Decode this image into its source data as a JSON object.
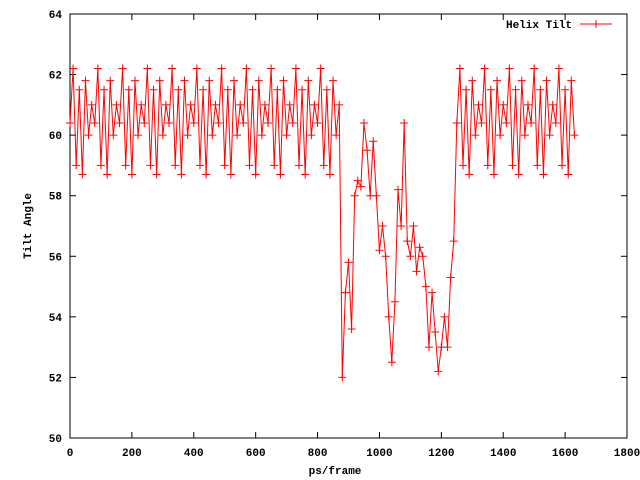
{
  "chart_data": {
    "type": "line",
    "xlabel": "ps/frame",
    "ylabel": "Tilt Angle",
    "xlim": [
      0,
      1800
    ],
    "xticks": [
      0,
      200,
      400,
      600,
      800,
      1000,
      1200,
      1400,
      1600,
      1800
    ],
    "ylim": [
      50,
      64
    ],
    "yticks": [
      50,
      52,
      54,
      56,
      58,
      60,
      62,
      64
    ],
    "legend": "top-right",
    "x": [
      0,
      10,
      20,
      30,
      40,
      50,
      60,
      70,
      80,
      90,
      100,
      110,
      120,
      130,
      140,
      150,
      160,
      170,
      180,
      190,
      200,
      210,
      220,
      230,
      240,
      250,
      260,
      270,
      280,
      290,
      300,
      310,
      320,
      330,
      340,
      350,
      360,
      370,
      380,
      390,
      400,
      410,
      420,
      430,
      440,
      450,
      460,
      470,
      480,
      490,
      500,
      510,
      520,
      530,
      540,
      550,
      560,
      570,
      580,
      590,
      600,
      610,
      620,
      630,
      640,
      650,
      660,
      670,
      680,
      690,
      700,
      710,
      720,
      730,
      740,
      750,
      760,
      770,
      780,
      790,
      800,
      810,
      820,
      830,
      840,
      850,
      860,
      870,
      880,
      890,
      900,
      910,
      920,
      930,
      940,
      950,
      960,
      970,
      980,
      990,
      1000,
      1010,
      1020,
      1030,
      1040,
      1050,
      1060,
      1070,
      1080,
      1090,
      1100,
      1110,
      1120,
      1130,
      1140,
      1150,
      1160,
      1170,
      1180,
      1190,
      1200,
      1210,
      1220,
      1230,
      1240,
      1250,
      1260,
      1270,
      1280,
      1290,
      1300,
      1310,
      1320,
      1330,
      1340,
      1350,
      1360,
      1370,
      1380,
      1390,
      1400,
      1410,
      1420,
      1430,
      1440,
      1450,
      1460,
      1470,
      1480,
      1490,
      1500,
      1510,
      1520,
      1530,
      1540,
      1550,
      1560,
      1570,
      1580,
      1590,
      1600,
      1610,
      1620,
      1630
    ],
    "series": [
      {
        "name": "Helix Tilt",
        "color": "#ff0000",
        "values": [
          60.4,
          62.2,
          59.0,
          61.5,
          58.7,
          61.8,
          60.0,
          61.0,
          60.4,
          62.2,
          59.0,
          61.5,
          58.7,
          61.8,
          60.0,
          61.0,
          60.4,
          62.2,
          59.0,
          61.5,
          58.7,
          61.8,
          60.0,
          61.0,
          60.4,
          62.2,
          59.0,
          61.5,
          58.7,
          61.8,
          60.0,
          61.0,
          60.4,
          62.2,
          59.0,
          61.5,
          58.7,
          61.8,
          60.0,
          61.0,
          60.4,
          62.2,
          59.0,
          61.5,
          58.7,
          61.8,
          60.0,
          61.0,
          60.4,
          62.2,
          59.0,
          61.5,
          58.7,
          61.8,
          60.0,
          61.0,
          60.4,
          62.2,
          59.0,
          61.5,
          58.7,
          61.8,
          60.0,
          61.0,
          60.4,
          62.2,
          59.0,
          61.5,
          58.7,
          61.8,
          60.0,
          61.0,
          60.4,
          62.2,
          59.0,
          61.5,
          58.7,
          61.8,
          60.0,
          61.0,
          60.4,
          62.2,
          59.0,
          61.5,
          58.7,
          61.8,
          60.0,
          61.0,
          52.0,
          54.8,
          55.8,
          53.6,
          58.0,
          58.5,
          58.3,
          60.4,
          59.5,
          58.0,
          59.8,
          58.0,
          56.2,
          57.0,
          56.0,
          54.0,
          52.5,
          54.5,
          58.2,
          57.0,
          60.4,
          56.5,
          56.0,
          57.0,
          55.5,
          56.3,
          56.0,
          55.0,
          53.0,
          54.8,
          53.5,
          52.2,
          53.0,
          54.0,
          53.0,
          55.3,
          56.5,
          60.4,
          62.2,
          59.0,
          61.5,
          58.7,
          61.8,
          60.0,
          61.0,
          60.4,
          62.2,
          59.0,
          61.5,
          58.7,
          61.8,
          60.0,
          61.0,
          60.4,
          62.2,
          59.0,
          61.5,
          58.7,
          61.8,
          60.0,
          61.0,
          60.4,
          62.2,
          59.0,
          61.5,
          58.7,
          61.8,
          60.0,
          61.0,
          60.4,
          62.2,
          59.0,
          61.5,
          58.7,
          61.8,
          60.0
        ]
      }
    ]
  }
}
